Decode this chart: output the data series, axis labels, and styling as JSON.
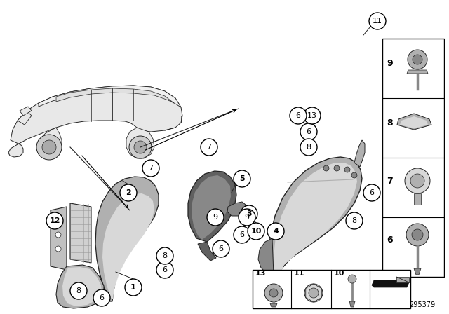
{
  "part_number": "295379",
  "bg_color": "#ffffff",
  "fig_width": 6.4,
  "fig_height": 4.48,
  "dpi": 100,
  "c_light": "#d8d8d8",
  "c_mid": "#b0b0b0",
  "c_dark": "#888888",
  "c_vdark": "#606060",
  "c_line": "#222222",
  "c_car": "#e8e8e8"
}
